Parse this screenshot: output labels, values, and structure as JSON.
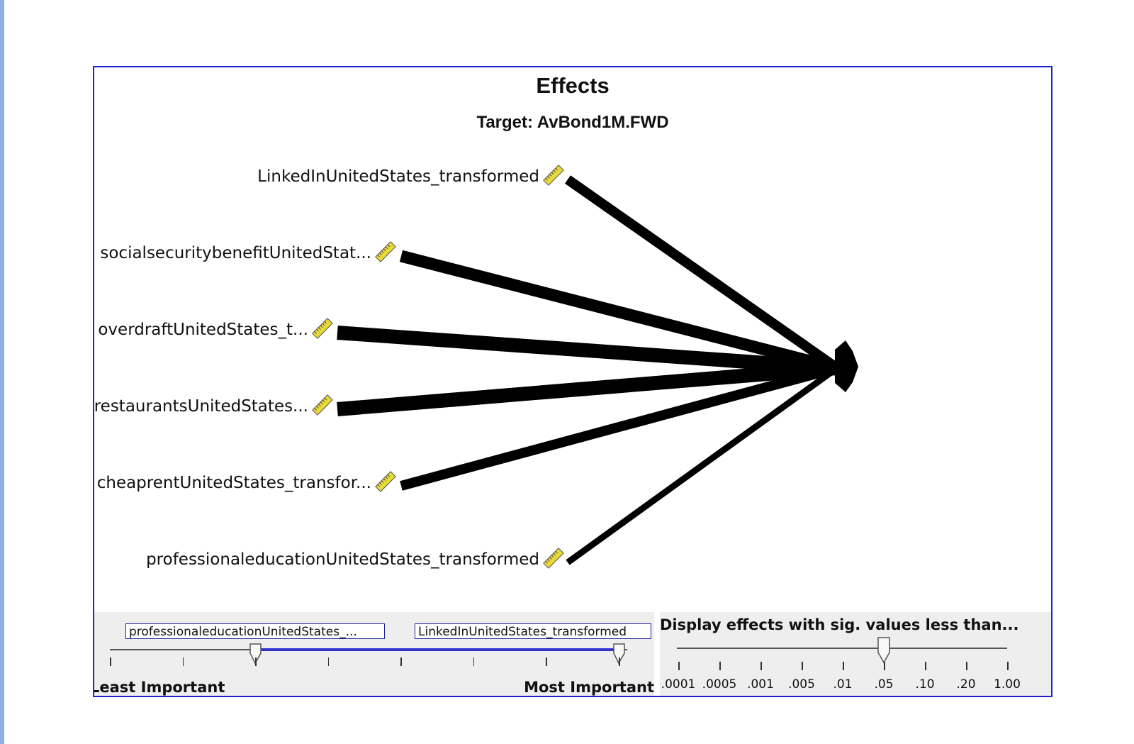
{
  "title": "Effects",
  "subtitle": "Target: AvBond1M.FWD",
  "target_icon": "arrowhead-target-node",
  "predictor_icon": "ruler-icon",
  "predictors": [
    {
      "label": "LinkedInUnitedStates_transformed",
      "importance_rank": 1
    },
    {
      "label": "socialsecuritybenefitUnitedStat...",
      "importance_rank": 2
    },
    {
      "label": "overdraftUnitedStates_t...",
      "importance_rank": 3
    },
    {
      "label": "restaurantsUnitedStates...",
      "importance_rank": 4
    },
    {
      "label": "cheaprentUnitedStates_transfor...",
      "importance_rank": 5
    },
    {
      "label": "professionaleducationUnitedStates_transformed",
      "importance_rank": 6
    }
  ],
  "importance_slider": {
    "low_value": "professionaleducationUnitedStates_...",
    "high_value": "LinkedInUnitedStates_transformed",
    "left_label": "Least Important",
    "right_label": "Most Important",
    "tick_count": 8,
    "range_start_tick": 2,
    "range_end_tick": 7,
    "accent_color": "#3333cc"
  },
  "significance_slider": {
    "heading": "Display effects with sig. values less than...",
    "ticks": [
      ".0001",
      ".0005",
      ".001",
      ".005",
      ".01",
      ".05",
      ".10",
      ".20",
      "1.00"
    ],
    "selected": ".05"
  },
  "colors": {
    "frame_border": "#2222cc",
    "panel_bg": "#eeeeee",
    "edge": "#000000",
    "ruler": "#e8d93a"
  }
}
